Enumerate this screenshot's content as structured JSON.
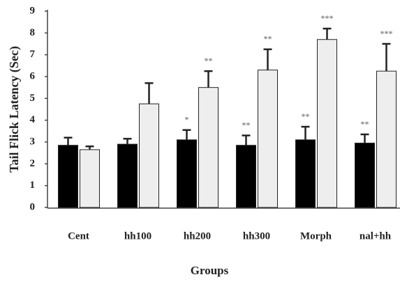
{
  "chart_data": {
    "type": "bar",
    "y_label": "Tail Flick Latency (Sec)",
    "x_label": "Groups",
    "categories": [
      "Cent",
      "hh100",
      "hh200",
      "hh300",
      "Morph",
      "nal+hh"
    ],
    "series": [
      {
        "color": "#000000",
        "values": [
          2.85,
          2.9,
          3.1,
          2.85,
          3.1,
          2.95
        ],
        "errors": [
          0.35,
          0.25,
          0.45,
          0.45,
          0.6,
          0.4
        ],
        "annotations": [
          null,
          null,
          "*",
          "**",
          "**",
          "**"
        ]
      },
      {
        "color": "#eeeeee",
        "values": [
          2.65,
          4.75,
          5.5,
          6.3,
          7.7,
          6.25
        ],
        "errors": [
          0.15,
          0.95,
          0.75,
          0.95,
          0.5,
          1.25
        ],
        "annotations": [
          null,
          null,
          "**",
          "**",
          "***",
          "***"
        ]
      }
    ],
    "ylim": [
      0,
      9
    ],
    "yticks": [
      0,
      1,
      2,
      3,
      4,
      5,
      6,
      7,
      8,
      9
    ]
  }
}
